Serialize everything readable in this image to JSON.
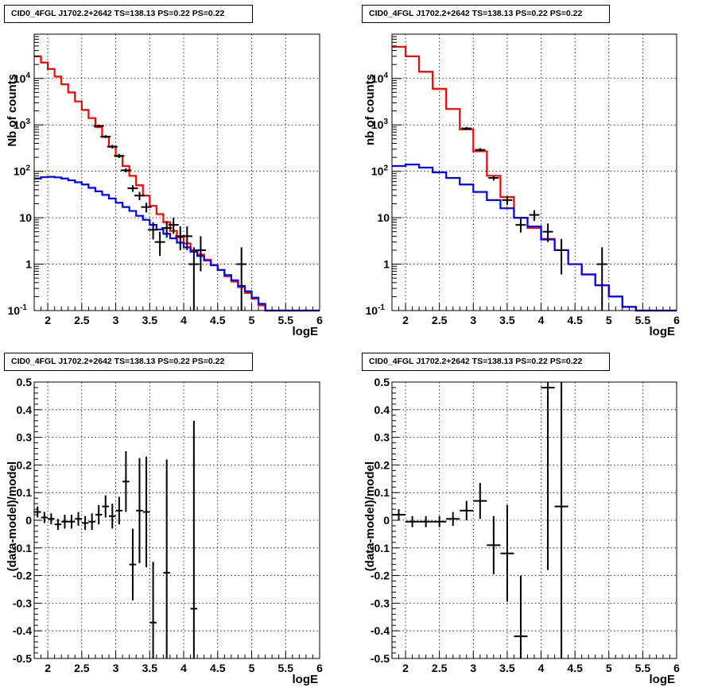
{
  "chart_data": [
    {
      "type": "line",
      "title": "CID0_4FGL J1702.2+2642 TS=138.13 PS=0.22 PS=0.22",
      "xlabel": "logE",
      "ylabel": "Nb of counts",
      "xlim": [
        1.8,
        6.0
      ],
      "ylim": [
        0.1,
        90000
      ],
      "yscale": "log",
      "grid": true,
      "xticks": [
        "2",
        "2.5",
        "3",
        "3.5",
        "4",
        "4.5",
        "5",
        "5.5",
        "6"
      ],
      "yticks": [
        "10^{-1}",
        "1",
        "10",
        "10^{2}",
        "10^{3}",
        "10^{4}"
      ],
      "bin_edges": [
        1.8,
        1.9,
        2.0,
        2.1,
        2.2,
        2.3,
        2.4,
        2.5,
        2.6,
        2.7,
        2.8,
        2.9,
        3.0,
        3.1,
        3.2,
        3.3,
        3.4,
        3.5,
        3.6,
        3.7,
        3.8,
        3.9,
        4.0,
        4.1,
        4.2,
        4.3,
        4.4,
        4.5,
        4.6,
        4.7,
        4.8,
        4.9,
        5.0,
        5.1,
        5.2,
        5.3,
        5.4,
        5.5,
        5.6,
        5.7,
        5.8,
        5.9,
        6.0
      ],
      "series": [
        {
          "color": "#ff0000",
          "values": [
            30000,
            22000,
            16000,
            11000,
            7500,
            5000,
            3200,
            2100,
            1400,
            900,
            550,
            340,
            210,
            130,
            80,
            50,
            30,
            18,
            12,
            8,
            5.2,
            3.8,
            2.8,
            2.0,
            1.6,
            1.25,
            0.95,
            0.75,
            0.55,
            0.42,
            0.32,
            0.24,
            0.18,
            0.13,
            0.1,
            0.1,
            0.1,
            0.1,
            0.1,
            0.1,
            0.1,
            0.1
          ]
        },
        {
          "color": "#0000ff",
          "values": [
            70,
            75,
            76,
            74,
            70,
            64,
            58,
            52,
            44,
            37,
            31,
            26,
            21,
            17,
            14,
            11,
            9,
            7,
            5.6,
            4.5,
            3.6,
            2.9,
            2.3,
            1.85,
            1.5,
            1.2,
            0.95,
            0.75,
            0.58,
            0.45,
            0.34,
            0.26,
            0.19,
            0.14,
            0.1,
            0.1,
            0.1,
            0.1,
            0.1,
            0.1,
            0.1,
            0.1
          ]
        }
      ],
      "points": [
        {
          "x": 2.75,
          "y": 950,
          "ylo": 890,
          "yhi": 1010
        },
        {
          "x": 2.85,
          "y": 560,
          "ylo": 520,
          "yhi": 600
        },
        {
          "x": 2.95,
          "y": 340,
          "ylo": 310,
          "yhi": 372
        },
        {
          "x": 3.05,
          "y": 215,
          "ylo": 193,
          "yhi": 238
        },
        {
          "x": 3.15,
          "y": 105,
          "ylo": 95,
          "yhi": 116
        },
        {
          "x": 3.25,
          "y": 43,
          "ylo": 36,
          "yhi": 50
        },
        {
          "x": 3.35,
          "y": 30,
          "ylo": 24,
          "yhi": 36
        },
        {
          "x": 3.45,
          "y": 17,
          "ylo": 13,
          "yhi": 21
        },
        {
          "x": 3.55,
          "y": 5.5,
          "ylo": 3.4,
          "yhi": 8
        },
        {
          "x": 3.65,
          "y": 3.0,
          "ylo": 1.5,
          "yhi": 5
        },
        {
          "x": 3.75,
          "y": 6.0,
          "ylo": 3.7,
          "yhi": 8.5
        },
        {
          "x": 3.85,
          "y": 7.0,
          "ylo": 4.5,
          "yhi": 10
        },
        {
          "x": 3.95,
          "y": 4.0,
          "ylo": 2.0,
          "yhi": 6.5
        },
        {
          "x": 4.05,
          "y": 4.0,
          "ylo": 2.0,
          "yhi": 6.5
        },
        {
          "x": 4.15,
          "y": 1.0,
          "ylo": 0.1,
          "yhi": 2.3
        },
        {
          "x": 4.25,
          "y": 2.0,
          "ylo": 0.7,
          "yhi": 4.0
        },
        {
          "x": 4.85,
          "y": 1.0,
          "ylo": 0.1,
          "yhi": 2.3
        }
      ]
    },
    {
      "type": "line",
      "title": "CID0_4FGL J1702.2+2642 TS=138.13 PS=0.22 PS=0.22",
      "xlabel": "logE",
      "ylabel": "nb of counts",
      "xlim": [
        1.8,
        6.0
      ],
      "ylim": [
        0.1,
        90000
      ],
      "yscale": "log",
      "grid": true,
      "xticks": [
        "2",
        "2.5",
        "3",
        "3.5",
        "4",
        "4.5",
        "5",
        "5.5",
        "6"
      ],
      "yticks": [
        "10^{-1}",
        "1",
        "10",
        "10^{2}",
        "10^{3}",
        "10^{4}"
      ],
      "bin_edges": [
        1.8,
        2.0,
        2.2,
        2.4,
        2.6,
        2.8,
        3.0,
        3.2,
        3.4,
        3.6,
        3.8,
        4.0,
        4.2,
        4.4,
        4.6,
        4.8,
        5.0,
        5.2,
        5.4,
        5.6,
        5.8,
        6.0
      ],
      "series": [
        {
          "color": "#ff0000",
          "values": [
            48000,
            30000,
            14000,
            6000,
            2200,
            800,
            270,
            80,
            28,
            10,
            6,
            3.5,
            2.0,
            1.0,
            0.6,
            0.35,
            0.2,
            0.12,
            0.1,
            0.1,
            0.1
          ]
        },
        {
          "color": "#0000ff",
          "values": [
            130,
            140,
            120,
            95,
            72,
            52,
            36,
            24,
            16,
            10,
            6.5,
            3.4,
            2.0,
            1.0,
            0.6,
            0.35,
            0.2,
            0.12,
            0.1,
            0.1,
            0.1
          ]
        }
      ],
      "points": [
        {
          "x": 2.9,
          "y": 840,
          "ylo": 780,
          "yhi": 900
        },
        {
          "x": 3.1,
          "y": 290,
          "ylo": 265,
          "yhi": 315
        },
        {
          "x": 3.3,
          "y": 72,
          "ylo": 63,
          "yhi": 80
        },
        {
          "x": 3.5,
          "y": 24,
          "ylo": 19,
          "yhi": 29
        },
        {
          "x": 3.7,
          "y": 7.0,
          "ylo": 4.8,
          "yhi": 9.5
        },
        {
          "x": 3.9,
          "y": 11.5,
          "ylo": 8.5,
          "yhi": 14.5
        },
        {
          "x": 4.1,
          "y": 5.0,
          "ylo": 3.0,
          "yhi": 7.5
        },
        {
          "x": 4.3,
          "y": 2.0,
          "ylo": 0.6,
          "yhi": 3.5
        },
        {
          "x": 4.9,
          "y": 1.0,
          "ylo": 0.1,
          "yhi": 2.3
        }
      ]
    },
    {
      "type": "scatter",
      "title": "CID0_4FGL J1702.2+2642 TS=138.13 PS=0.22 PS=0.22",
      "xlabel": "logE",
      "ylabel": "(data-model)/model",
      "xlim": [
        1.8,
        6.0
      ],
      "ylim": [
        -0.5,
        0.5
      ],
      "grid": true,
      "xticks": [
        "2",
        "2.5",
        "3",
        "3.5",
        "4",
        "4.5",
        "5",
        "5.5",
        "6"
      ],
      "yticks": [
        "-0.5",
        "-0.4",
        "-0.3",
        "-0.2",
        "-0.1",
        "0",
        "0.1",
        "0.2",
        "0.3",
        "0.4",
        "0.5"
      ],
      "xerr": 0.05,
      "points": [
        {
          "x": 1.85,
          "y": 0.03,
          "err": 0.02
        },
        {
          "x": 1.95,
          "y": 0.01,
          "err": 0.02
        },
        {
          "x": 2.05,
          "y": 0.005,
          "err": 0.02
        },
        {
          "x": 2.15,
          "y": -0.015,
          "err": 0.02
        },
        {
          "x": 2.25,
          "y": -0.005,
          "err": 0.025
        },
        {
          "x": 2.35,
          "y": -0.005,
          "err": 0.025
        },
        {
          "x": 2.45,
          "y": 0.005,
          "err": 0.025
        },
        {
          "x": 2.55,
          "y": -0.01,
          "err": 0.025
        },
        {
          "x": 2.65,
          "y": -0.005,
          "err": 0.03
        },
        {
          "x": 2.75,
          "y": 0.02,
          "err": 0.035
        },
        {
          "x": 2.85,
          "y": 0.05,
          "err": 0.04
        },
        {
          "x": 2.95,
          "y": 0.015,
          "err": 0.045
        },
        {
          "x": 3.05,
          "y": 0.035,
          "err": 0.05
        },
        {
          "x": 3.15,
          "y": 0.14,
          "err": 0.11
        },
        {
          "x": 3.25,
          "y": -0.16,
          "err": 0.13
        },
        {
          "x": 3.35,
          "y": 0.035,
          "err": 0.19
        },
        {
          "x": 3.45,
          "y": 0.03,
          "err": 0.2
        },
        {
          "x": 3.55,
          "y": -0.37,
          "err": 0.22
        },
        {
          "x": 3.75,
          "y": -0.19,
          "err": 0.41
        },
        {
          "x": 4.15,
          "y": -0.32,
          "err": 0.68
        }
      ]
    },
    {
      "type": "scatter",
      "title": "CID0_4FGL J1702.2+2642 TS=138.13 PS=0.22 PS=0.22",
      "xlabel": "logE",
      "ylabel": "(data-model)/model",
      "xlim": [
        1.8,
        6.0
      ],
      "ylim": [
        -0.5,
        0.5
      ],
      "grid": true,
      "xticks": [
        "2",
        "2.5",
        "3",
        "3.5",
        "4",
        "4.5",
        "5",
        "5.5",
        "6"
      ],
      "yticks": [
        "-0.5",
        "-0.4",
        "-0.3",
        "-0.2",
        "-0.1",
        "0",
        "0.1",
        "0.2",
        "0.3",
        "0.4",
        "0.5"
      ],
      "xerr": 0.1,
      "points": [
        {
          "x": 1.9,
          "y": 0.02,
          "err": 0.02
        },
        {
          "x": 2.1,
          "y": -0.005,
          "err": 0.02
        },
        {
          "x": 2.3,
          "y": -0.005,
          "err": 0.02
        },
        {
          "x": 2.5,
          "y": -0.005,
          "err": 0.02
        },
        {
          "x": 2.7,
          "y": 0.005,
          "err": 0.025
        },
        {
          "x": 2.9,
          "y": 0.035,
          "err": 0.035
        },
        {
          "x": 3.1,
          "y": 0.07,
          "err": 0.065
        },
        {
          "x": 3.3,
          "y": -0.09,
          "err": 0.105
        },
        {
          "x": 3.5,
          "y": -0.12,
          "err": 0.175
        },
        {
          "x": 3.7,
          "y": -0.42,
          "err": 0.22
        },
        {
          "x": 4.1,
          "y": 0.48,
          "err": 0.66
        },
        {
          "x": 4.3,
          "y": 0.05,
          "err": 0.8
        }
      ]
    }
  ]
}
